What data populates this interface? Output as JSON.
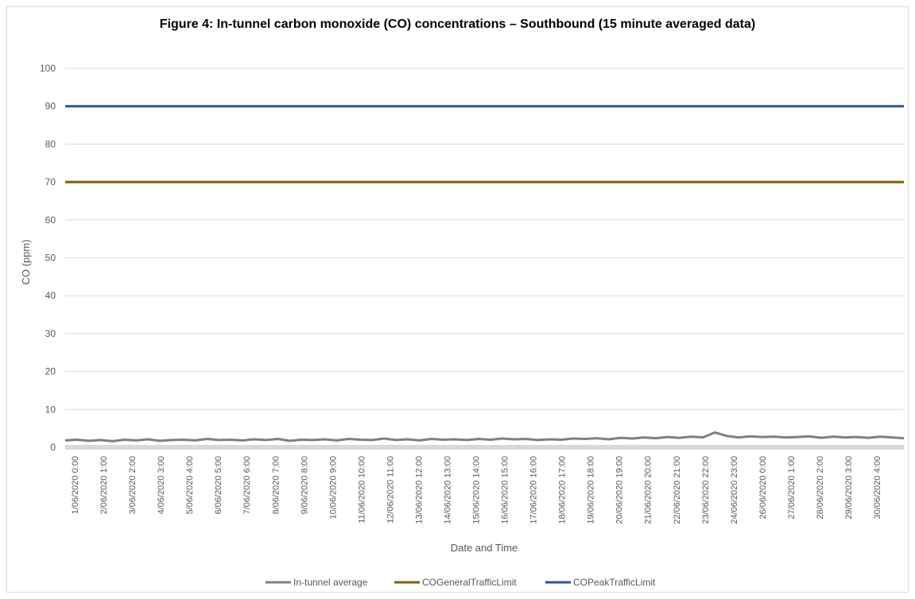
{
  "chart_data": {
    "type": "line",
    "title": "Figure 4: In-tunnel carbon monoxide (CO) concentrations – Southbound (15 minute averaged data)",
    "xlabel": "Date and Time",
    "ylabel": "CO (ppm)",
    "ylim": [
      0,
      100
    ],
    "yticks": [
      0,
      10,
      20,
      30,
      40,
      50,
      60,
      70,
      80,
      90,
      100
    ],
    "grid": true,
    "legend_position": "bottom",
    "x_tick_labels": [
      "1/06/2020 0:00",
      "2/06/2020 1:00",
      "3/06/2020 2:00",
      "4/06/2020 3:00",
      "5/06/2020 4:00",
      "6/06/2020 5:00",
      "7/06/2020 6:00",
      "8/06/2020 7:00",
      "9/06/2020 8:00",
      "10/06/2020 9:00",
      "11/06/2020 10:00",
      "12/06/2020 11:00",
      "13/06/2020 12:00",
      "14/06/2020 13:00",
      "15/06/2020 14:00",
      "16/06/2020 15:00",
      "17/06/2020 16:00",
      "18/06/2020 17:00",
      "19/06/2020 18:00",
      "20/06/2020 19:00",
      "21/06/2020 20:00",
      "22/06/2020 21:00",
      "23/06/2020 22:00",
      "24/06/2020 23:00",
      "26/06/2020 0:00",
      "27/06/2020 1:00",
      "28/06/2020 2:00",
      "29/06/2020 3:00",
      "30/06/2020 4:00"
    ],
    "series": [
      {
        "name": "In-tunnel average",
        "color": "#808080",
        "values": [
          1.8,
          2.0,
          1.7,
          1.9,
          1.6,
          2.0,
          1.8,
          2.1,
          1.7,
          1.9,
          2.0,
          1.8,
          2.2,
          1.9,
          2.0,
          1.8,
          2.1,
          1.9,
          2.2,
          1.7,
          2.0,
          1.9,
          2.1,
          1.8,
          2.2,
          2.0,
          1.9,
          2.3,
          1.9,
          2.1,
          1.8,
          2.2,
          2.0,
          2.1,
          1.9,
          2.2,
          2.0,
          2.3,
          2.1,
          2.2,
          1.9,
          2.1,
          2.0,
          2.3,
          2.2,
          2.4,
          2.1,
          2.5,
          2.3,
          2.6,
          2.4,
          2.7,
          2.5,
          2.8,
          2.6,
          3.9,
          3.0,
          2.6,
          2.9,
          2.7,
          2.8,
          2.6,
          2.7,
          2.9,
          2.5,
          2.8,
          2.6,
          2.7,
          2.5,
          2.8,
          2.6,
          2.4
        ]
      },
      {
        "name": "COGeneralTrafficLimit",
        "color": "#7f6000",
        "values": [
          70,
          70
        ]
      },
      {
        "name": "COPeakTrafficLimit",
        "color": "#2f5597",
        "values": [
          90,
          90
        ]
      }
    ]
  }
}
